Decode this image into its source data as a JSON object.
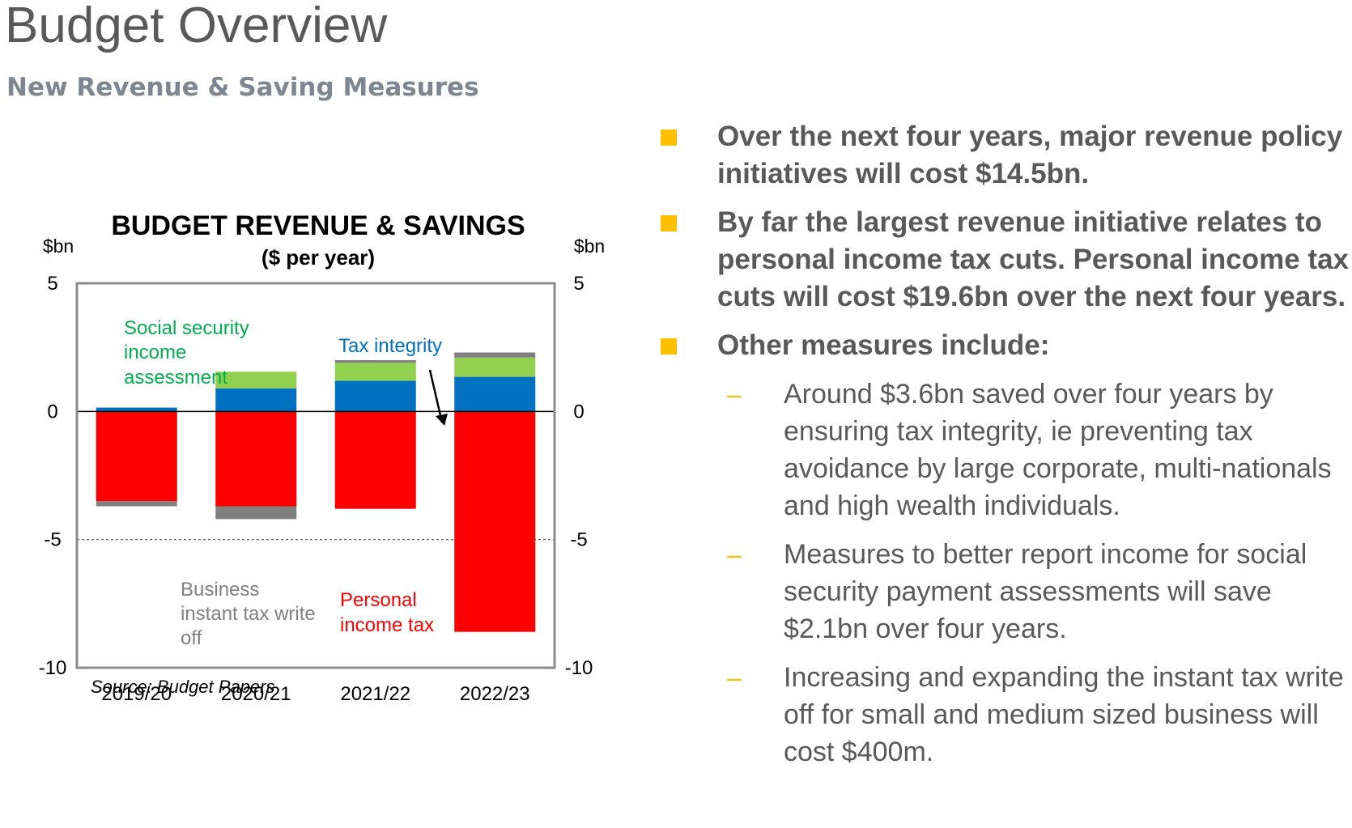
{
  "slide": {
    "title": "Budget Overview",
    "subtitle": "New Revenue & Saving Measures"
  },
  "bullets": [
    {
      "text": "Over the next four years, major revenue policy initiatives will cost $14.5bn."
    },
    {
      "text": "By far the largest revenue initiative relates to personal income tax cuts.  Personal income tax cuts will cost $19.6bn over the next four years."
    },
    {
      "text": "Other measures include:"
    }
  ],
  "sub_bullets": [
    {
      "text": "Around $3.6bn saved over four years by ensuring tax integrity, ie preventing tax avoidance by large corporate, multi-nationals and high wealth individuals."
    },
    {
      "text": "Measures to better report income for social security payment assessments will save $2.1bn over four years."
    },
    {
      "text": "Increasing and expanding the instant tax write off for small and medium sized business will cost $400m."
    }
  ],
  "colors": {
    "bullet_marker": "#ffc000",
    "social_security": "#92d050",
    "tax_integrity": "#0070c0",
    "personal_income_tax": "#ff0000",
    "business_write_off": "#808080"
  },
  "chart_data": {
    "type": "bar",
    "stacked": true,
    "title": "BUDGET REVENUE & SAVINGS",
    "subtitle": "($ per year)",
    "ylabel_left": "$bn",
    "ylabel_right": "$bn",
    "ylim": [
      -10,
      5
    ],
    "yticks": [
      5,
      0,
      -5,
      -10
    ],
    "reference_line": -5,
    "categories": [
      "2019/20",
      "2020/21",
      "2021/22",
      "2022/23"
    ],
    "series": [
      {
        "name": "Tax integrity",
        "color": "#0070c0",
        "values": [
          0.15,
          0.9,
          1.2,
          1.35
        ]
      },
      {
        "name": "Social security income assessment",
        "color": "#92d050",
        "values": [
          0.0,
          0.65,
          0.7,
          0.75
        ]
      },
      {
        "name": "",
        "color": "#808080",
        "values": [
          0.0,
          0.0,
          0.1,
          0.2
        ]
      },
      {
        "name": "Personal income tax",
        "color": "#ff0000",
        "values": [
          -3.5,
          -3.7,
          -3.8,
          -8.6
        ]
      },
      {
        "name": "Business instant tax write off",
        "color": "#808080",
        "values": [
          -0.2,
          -0.5,
          0.0,
          0.0
        ]
      }
    ],
    "annotations": [
      {
        "text": "Social security income assessment",
        "color": "#00b050"
      },
      {
        "text": "Tax integrity",
        "color": "#0070c0"
      },
      {
        "text": "Business instant tax write off",
        "color": "#808080"
      },
      {
        "text": "Personal income tax",
        "color": "#ff0000"
      }
    ],
    "source": "Source: Budget Papers"
  }
}
